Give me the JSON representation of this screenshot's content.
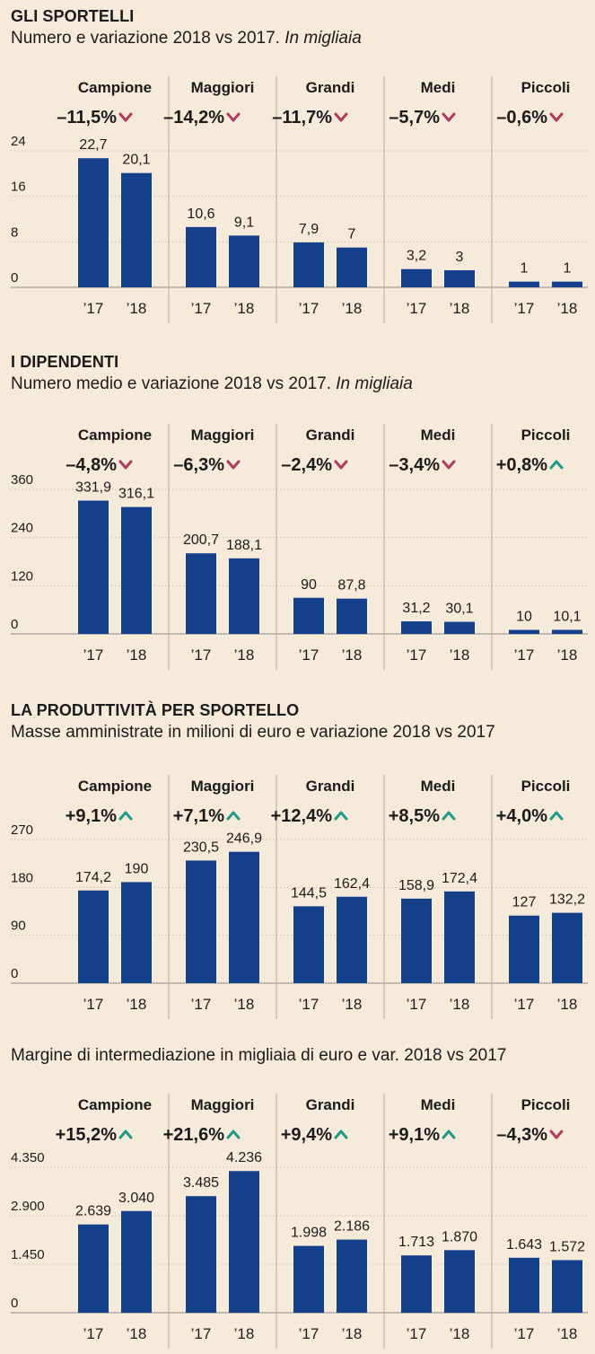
{
  "colors": {
    "background": "#f6eadb",
    "bar": "#143f8a",
    "down": "#b23a5c",
    "up": "#1f9a86",
    "text": "#1b1b1b",
    "axis": "#8a8a8a"
  },
  "x_labels": [
    "’17",
    "’18"
  ],
  "sections": [
    {
      "title": "GLI SPORTELLI",
      "subtitle": "Numero e variazione 2018 vs 2017.",
      "subtitle_italic": "In migliaia"
    },
    {
      "title": "I DIPENDENTI",
      "subtitle": "Numero medio e variazione 2018 vs 2017.",
      "subtitle_italic": "In migliaia"
    },
    {
      "title": "LA PRODUTTIVITÀ PER SPORTELLO",
      "subtitle": "Masse amministrate in milioni di euro e variazione 2018 vs 2017",
      "subtitle_italic": ""
    },
    {
      "title": "",
      "subtitle": "Margine di intermediazione in migliaia di euro e var. 2018 vs 2017",
      "subtitle_italic": ""
    }
  ],
  "chart_data": [
    {
      "type": "bar",
      "title": "GLI SPORTELLI",
      "ylim": [
        0,
        24
      ],
      "yticks": [
        0,
        8,
        16,
        24
      ],
      "ytick_labels": [
        "0",
        "8",
        "16",
        "24"
      ],
      "grid": true,
      "groups": [
        {
          "name": "Campione",
          "change": "–11,5%",
          "direction": "down",
          "values": [
            22.7,
            20.1
          ],
          "labels": [
            "22,7",
            "20,1"
          ]
        },
        {
          "name": "Maggiori",
          "change": "–14,2%",
          "direction": "down",
          "values": [
            10.6,
            9.1
          ],
          "labels": [
            "10,6",
            "9,1"
          ]
        },
        {
          "name": "Grandi",
          "change": "–11,7%",
          "direction": "down",
          "values": [
            7.9,
            7
          ],
          "labels": [
            "7,9",
            "7"
          ]
        },
        {
          "name": "Medi",
          "change": "–5,7%",
          "direction": "down",
          "values": [
            3.2,
            3
          ],
          "labels": [
            "3,2",
            "3"
          ]
        },
        {
          "name": "Piccoli",
          "change": "–0,6%",
          "direction": "down",
          "values": [
            1,
            1
          ],
          "labels": [
            "1",
            "1"
          ]
        }
      ]
    },
    {
      "type": "bar",
      "title": "I DIPENDENTI",
      "ylim": [
        0,
        360
      ],
      "yticks": [
        0,
        120,
        240,
        360
      ],
      "ytick_labels": [
        "0",
        "120",
        "240",
        "360"
      ],
      "grid": true,
      "groups": [
        {
          "name": "Campione",
          "change": "–4,8%",
          "direction": "down",
          "values": [
            331.9,
            316.1
          ],
          "labels": [
            "331,9",
            "316,1"
          ]
        },
        {
          "name": "Maggiori",
          "change": "–6,3%",
          "direction": "down",
          "values": [
            200.7,
            188.1
          ],
          "labels": [
            "200,7",
            "188,1"
          ]
        },
        {
          "name": "Grandi",
          "change": "–2,4%",
          "direction": "down",
          "values": [
            90,
            87.8
          ],
          "labels": [
            "90",
            "87,8"
          ]
        },
        {
          "name": "Medi",
          "change": "–3,4%",
          "direction": "down",
          "values": [
            31.2,
            30.1
          ],
          "labels": [
            "31,2",
            "30,1"
          ]
        },
        {
          "name": "Piccoli",
          "change": "+0,8%",
          "direction": "up",
          "values": [
            10,
            10.1
          ],
          "labels": [
            "10",
            "10,1"
          ]
        }
      ]
    },
    {
      "type": "bar",
      "title": "LA PRODUTTIVITÀ PER SPORTELLO",
      "ylim": [
        0,
        270
      ],
      "yticks": [
        0,
        90,
        180,
        270
      ],
      "ytick_labels": [
        "0",
        "90",
        "180",
        "270"
      ],
      "grid": true,
      "groups": [
        {
          "name": "Campione",
          "change": "+9,1%",
          "direction": "up",
          "values": [
            174.2,
            190
          ],
          "labels": [
            "174,2",
            "190"
          ]
        },
        {
          "name": "Maggiori",
          "change": "+7,1%",
          "direction": "up",
          "values": [
            230.5,
            246.9
          ],
          "labels": [
            "230,5",
            "246,9"
          ]
        },
        {
          "name": "Grandi",
          "change": "+12,4%",
          "direction": "up",
          "values": [
            144.5,
            162.4
          ],
          "labels": [
            "144,5",
            "162,4"
          ]
        },
        {
          "name": "Medi",
          "change": "+8,5%",
          "direction": "up",
          "values": [
            158.9,
            172.4
          ],
          "labels": [
            "158,9",
            "172,4"
          ]
        },
        {
          "name": "Piccoli",
          "change": "+4,0%",
          "direction": "up",
          "values": [
            127,
            132.2
          ],
          "labels": [
            "127",
            "132,2"
          ]
        }
      ]
    },
    {
      "type": "bar",
      "title": "Margine di intermediazione in migliaia di euro e var. 2018 vs 2017",
      "ylim": [
        0,
        4350
      ],
      "yticks": [
        0,
        1450,
        2900,
        4350
      ],
      "ytick_labels": [
        "0",
        "1.450",
        "2.900",
        "4.350"
      ],
      "grid": true,
      "groups": [
        {
          "name": "Campione",
          "change": "+15,2%",
          "direction": "up",
          "values": [
            2639,
            3040
          ],
          "labels": [
            "2.639",
            "3.040"
          ]
        },
        {
          "name": "Maggiori",
          "change": "+21,6%",
          "direction": "up",
          "values": [
            3485,
            4236
          ],
          "labels": [
            "3.485",
            "4.236"
          ]
        },
        {
          "name": "Grandi",
          "change": "+9,4%",
          "direction": "up",
          "values": [
            1998,
            2186
          ],
          "labels": [
            "1.998",
            "2.186"
          ]
        },
        {
          "name": "Medi",
          "change": "+9,1%",
          "direction": "up",
          "values": [
            1713,
            1870
          ],
          "labels": [
            "1.713",
            "1.870"
          ]
        },
        {
          "name": "Piccoli",
          "change": "–4,3%",
          "direction": "down",
          "values": [
            1643,
            1572
          ],
          "labels": [
            "1.643",
            "1.572"
          ]
        }
      ]
    }
  ]
}
